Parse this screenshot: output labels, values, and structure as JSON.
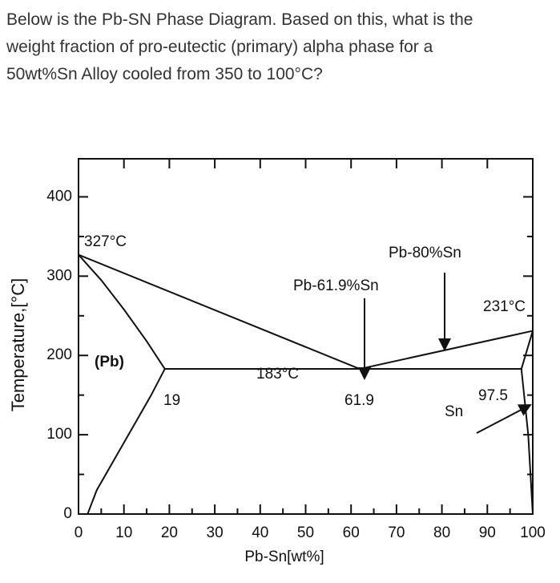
{
  "question": "Below is the Pb-SN Phase Diagram.  Based on this, what is the\nweight fraction of pro-eutectic (primary) alpha phase for a\n50wt%Sn Alloy cooled from 350 to 100°C?",
  "chart_data": {
    "type": "line",
    "xlabel": "Pb-Sn[wt%]",
    "ylabel": "Temperature,[°C]",
    "xlim": [
      0,
      100
    ],
    "ylim": [
      0,
      448
    ],
    "xticks": [
      0,
      10,
      20,
      30,
      40,
      50,
      60,
      70,
      80,
      90,
      100
    ],
    "yticks": [
      0,
      100,
      200,
      300,
      400
    ],
    "annotations": [
      "327°C",
      "(Pb)",
      "183°C",
      "19",
      "61.9",
      "Pb-61.9%Sn",
      "Pb-80%Sn",
      "231°C",
      "97.5",
      "Sn"
    ],
    "series": [
      {
        "color": "#111",
        "x": [
          0,
          61.9
        ],
        "values": [
          327,
          183
        ]
      },
      {
        "color": "#111",
        "x": [
          61.9,
          100
        ],
        "values": [
          183,
          231
        ]
      },
      {
        "color": "#111",
        "x": [
          19,
          97.5
        ],
        "values": [
          183,
          183
        ]
      },
      {
        "color": "#111",
        "x": [
          0,
          5,
          10,
          15,
          19
        ],
        "values": [
          327,
          295,
          258,
          218,
          183
        ]
      },
      {
        "color": "#111",
        "x": [
          19,
          16,
          12,
          8,
          4,
          2
        ],
        "values": [
          183,
          150,
          110,
          70,
          30,
          0
        ]
      },
      {
        "color": "#111",
        "x": [
          97.5,
          100
        ],
        "values": [
          183,
          231
        ]
      },
      {
        "color": "#111",
        "x": [
          97.5,
          99,
          100
        ],
        "values": [
          183,
          100,
          0
        ]
      }
    ]
  }
}
